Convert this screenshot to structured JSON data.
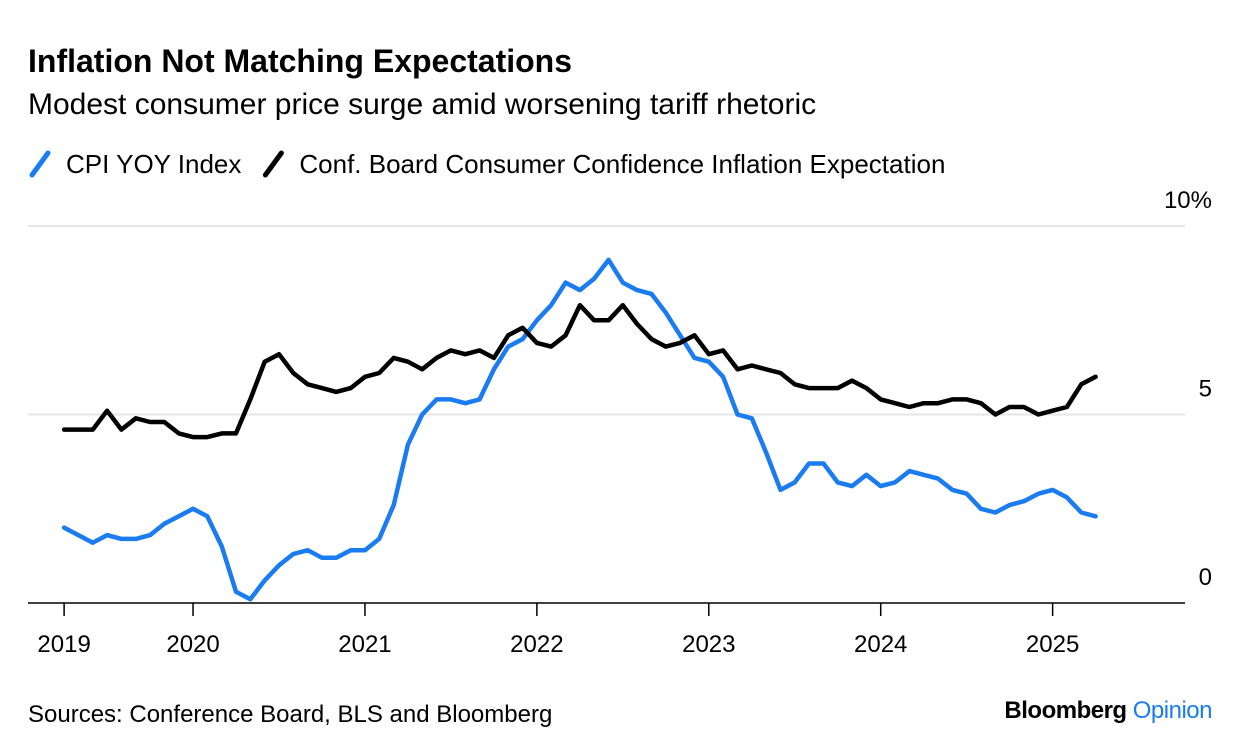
{
  "chart_data": {
    "type": "line",
    "title": "Inflation Not Matching Expectations",
    "subtitle": "Modest consumer price surge amid worsening tariff rhetoric",
    "x": [
      2019.25,
      2019.333,
      2019.417,
      2019.5,
      2019.583,
      2019.667,
      2019.75,
      2019.833,
      2019.917,
      2020,
      2020.083,
      2020.167,
      2020.25,
      2020.333,
      2020.417,
      2020.5,
      2020.583,
      2020.667,
      2020.75,
      2020.833,
      2020.917,
      2021,
      2021.083,
      2021.167,
      2021.25,
      2021.333,
      2021.417,
      2021.5,
      2021.583,
      2021.667,
      2021.75,
      2021.833,
      2021.917,
      2022,
      2022.083,
      2022.167,
      2022.25,
      2022.333,
      2022.417,
      2022.5,
      2022.583,
      2022.667,
      2022.75,
      2022.833,
      2022.917,
      2023,
      2023.083,
      2023.167,
      2023.25,
      2023.333,
      2023.417,
      2023.5,
      2023.583,
      2023.667,
      2023.75,
      2023.833,
      2023.917,
      2024,
      2024.083,
      2024.167,
      2024.25,
      2024.333,
      2024.417,
      2024.5,
      2024.583,
      2024.667,
      2024.75,
      2024.833,
      2024.917,
      2025,
      2025.083,
      2025.167,
      2025.25
    ],
    "series": [
      {
        "name": "CPI YOY Index",
        "color": "#1a7cf0",
        "values": [
          2.0,
          1.8,
          1.6,
          1.8,
          1.7,
          1.7,
          1.8,
          2.1,
          2.3,
          2.5,
          2.3,
          1.5,
          0.3,
          0.1,
          0.6,
          1.0,
          1.3,
          1.4,
          1.2,
          1.2,
          1.4,
          1.4,
          1.7,
          2.6,
          4.2,
          5.0,
          5.4,
          5.4,
          5.3,
          5.4,
          6.2,
          6.8,
          7.0,
          7.5,
          7.9,
          8.5,
          8.3,
          8.6,
          9.1,
          8.5,
          8.3,
          8.2,
          7.7,
          7.1,
          6.5,
          6.4,
          6.0,
          5.0,
          4.9,
          4.0,
          3.0,
          3.2,
          3.7,
          3.7,
          3.2,
          3.1,
          3.4,
          3.1,
          3.2,
          3.5,
          3.4,
          3.3,
          3.0,
          2.9,
          2.5,
          2.4,
          2.6,
          2.7,
          2.9,
          3.0,
          2.8,
          2.4,
          2.3
        ]
      },
      {
        "name": "Conf. Board Consumer Confidence Inflation Expectation",
        "color": "#000000",
        "values": [
          4.6,
          4.6,
          4.6,
          5.1,
          4.6,
          4.9,
          4.8,
          4.8,
          4.5,
          4.4,
          4.4,
          4.5,
          4.5,
          5.4,
          6.4,
          6.6,
          6.1,
          5.8,
          5.7,
          5.6,
          5.7,
          6.0,
          6.1,
          6.5,
          6.4,
          6.2,
          6.5,
          6.7,
          6.6,
          6.7,
          6.5,
          7.1,
          7.3,
          6.9,
          6.8,
          7.1,
          7.9,
          7.5,
          7.5,
          7.9,
          7.4,
          7.0,
          6.8,
          6.9,
          7.1,
          6.6,
          6.7,
          6.2,
          6.3,
          6.2,
          6.1,
          5.8,
          5.7,
          5.7,
          5.7,
          5.9,
          5.7,
          5.4,
          5.3,
          5.2,
          5.3,
          5.3,
          5.4,
          5.4,
          5.3,
          5.0,
          5.2,
          5.2,
          5.0,
          5.1,
          5.2,
          5.8,
          6.0
        ]
      }
    ],
    "xlim": [
      2019.04,
      2025.77
    ],
    "xticks": [
      {
        "value": 2019.25,
        "label": "2019"
      },
      2020,
      2021,
      2022,
      2023,
      2024,
      2025
    ],
    "ylim": [
      0,
      10
    ],
    "yticks": [
      0,
      5,
      {
        "value": 10,
        "label": "10%"
      }
    ],
    "grid": true,
    "source": "Sources: Conference Board, BLS and Bloomberg"
  },
  "brand": {
    "name": "Bloomberg",
    "product": "Opinion"
  }
}
